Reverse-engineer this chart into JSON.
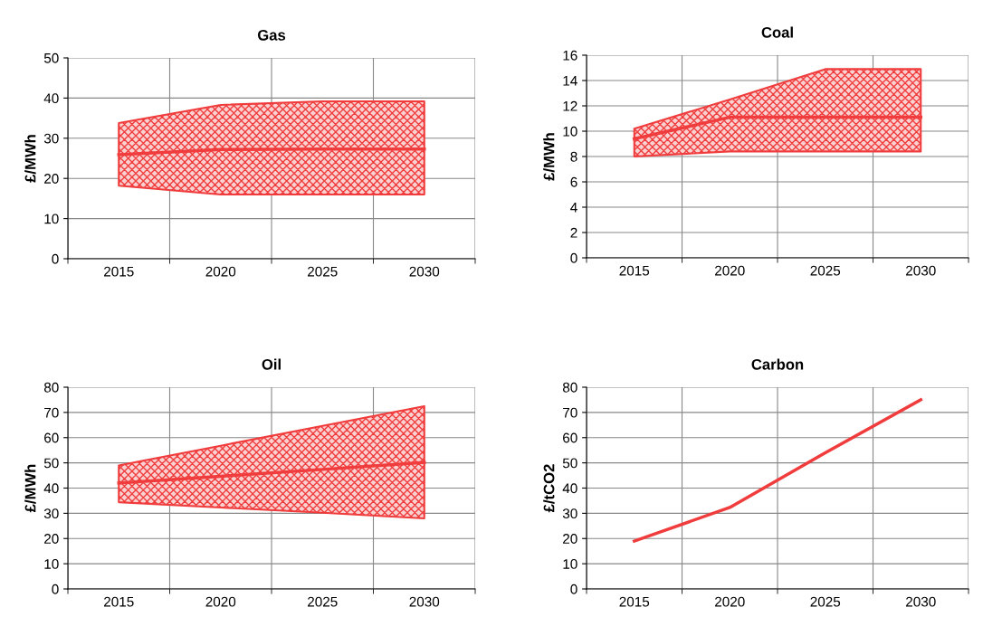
{
  "chart_data": [
    {
      "type": "line",
      "title": "Gas",
      "ylabel": "£/MWh",
      "categories": [
        "2015",
        "2020",
        "2025",
        "2030"
      ],
      "ylim": [
        0,
        50
      ],
      "yticks": [
        0,
        10,
        20,
        30,
        40,
        50
      ],
      "grid": true,
      "legend": false,
      "marker": "none",
      "series": [
        {
          "color": "#f03c3c",
          "values": [
            25.9,
            27.2,
            27.3,
            27.3
          ],
          "lower": [
            18.2,
            16,
            16,
            16
          ],
          "upper": [
            33.8,
            38.3,
            39.2,
            39.2
          ]
        }
      ]
    },
    {
      "type": "line",
      "title": "Coal",
      "ylabel": "£/MWh",
      "categories": [
        "2015",
        "2020",
        "2025",
        "2030"
      ],
      "ylim": [
        0,
        16
      ],
      "yticks": [
        0,
        2,
        4,
        6,
        8,
        10,
        12,
        14,
        16
      ],
      "grid": true,
      "legend": false,
      "marker": "none",
      "series": [
        {
          "color": "#f03c3c",
          "values": [
            9.4,
            11.1,
            11.1,
            11.1
          ],
          "lower": [
            8.0,
            8.4,
            8.4,
            8.4
          ],
          "upper": [
            10.2,
            12.5,
            14.9,
            14.9
          ]
        }
      ]
    },
    {
      "type": "line",
      "title": "Oil",
      "ylabel": "£/MWh",
      "categories": [
        "2015",
        "2020",
        "2025",
        "2030"
      ],
      "ylim": [
        0,
        80
      ],
      "yticks": [
        0,
        10,
        20,
        30,
        40,
        50,
        60,
        70,
        80
      ],
      "grid": true,
      "legend": false,
      "marker": "none",
      "series": [
        {
          "color": "#f03c3c",
          "values": [
            42,
            44.7,
            47.4,
            50.2
          ],
          "lower": [
            34.4,
            32.3,
            30.2,
            28
          ],
          "upper": [
            49,
            56.8,
            64.7,
            72.5
          ]
        }
      ]
    },
    {
      "type": "line",
      "title": "Carbon",
      "ylabel": "£/tCO2",
      "categories": [
        "2015",
        "2020",
        "2025",
        "2030"
      ],
      "ylim": [
        0,
        80
      ],
      "yticks": [
        0,
        10,
        20,
        30,
        40,
        50,
        60,
        70,
        80
      ],
      "grid": true,
      "legend": false,
      "marker": "none",
      "series": [
        {
          "color": "#f03c3c",
          "values": [
            19,
            32.3,
            54,
            75
          ]
        }
      ]
    }
  ]
}
